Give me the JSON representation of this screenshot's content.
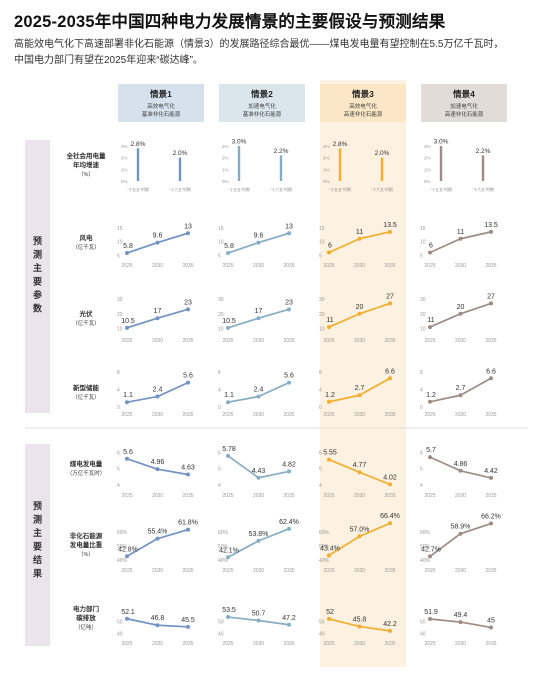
{
  "header": {
    "title": "2025-2035年中国四种电力发展情景的主要假设与预测结果",
    "subtitle_line1": "高能效电气化下高速部署非化石能源（情景3）的发展路径综合最优——煤电发电量有望控制在5.5万亿千瓦时，",
    "subtitle_line2": "中国电力部门有望在2025年迎来“碳达峰”。"
  },
  "colors": {
    "s1": "#7193c6",
    "s2": "#86adc3",
    "s3": "#f3ad2b",
    "s4": "#9c8c84",
    "s1_bg": "#d6e1ee",
    "s2_bg": "#dbe5ec",
    "s3_bg": "#fbe6c5",
    "s4_bg": "#e2dcd9",
    "s3_col": "#fdf1e1",
    "side_bg": "#ebe4ec"
  },
  "scenarios": [
    {
      "name": "情景1",
      "line1": "高效电气化",
      "line2": "基准非化石能源"
    },
    {
      "name": "情景2",
      "line1": "加速电气化",
      "line2": "基准非化石能源"
    },
    {
      "name": "情景3",
      "line1": "高效电气化",
      "line2": "高速非化石能源"
    },
    {
      "name": "情景4",
      "line1": "加速电气化",
      "line2": "高速非化石能源"
    }
  ],
  "side_labels": {
    "assumptions": [
      "预",
      "测",
      "主",
      "要",
      "参",
      "数"
    ],
    "results": [
      "预",
      "测",
      "主",
      "要",
      "结",
      "果"
    ]
  },
  "row_labels": [
    {
      "line1": "全社会用电量",
      "line2": "年均增速",
      "line3": "（%）"
    },
    {
      "line1": "风电",
      "line2": "（亿千瓦）",
      "line3": ""
    },
    {
      "line1": "光伏",
      "line2": "（亿千瓦）",
      "line3": ""
    },
    {
      "line1": "新型储能",
      "line2": "（亿千瓦）",
      "line3": ""
    },
    {
      "line1": "煤电发电量",
      "line2": "（万亿千瓦时）",
      "line3": ""
    },
    {
      "line1": "非化石能源",
      "line2": "发电量比重",
      "line3": "（%）"
    },
    {
      "line1": "电力部门",
      "line2": "碳排放",
      "line3": "（亿吨）"
    }
  ],
  "chart_data": [
    {
      "metric": "全社会用电量年均增速",
      "type": "bar",
      "unit": "%",
      "categories": [
        "\"十五五\"时期",
        "\"十六五\"时期"
      ],
      "y_ticks": [
        "3%",
        "2%",
        "1%",
        "0%"
      ],
      "ylim": [
        0,
        3
      ],
      "series": [
        {
          "name": "情景1",
          "values": [
            2.8,
            2.0
          ],
          "labels": [
            "2.8%",
            "2.0%"
          ]
        },
        {
          "name": "情景2",
          "values": [
            3.0,
            2.2
          ],
          "labels": [
            "3.0%",
            "2.2%"
          ]
        },
        {
          "name": "情景3",
          "values": [
            2.8,
            2.0
          ],
          "labels": [
            "2.8%",
            "2.0%"
          ]
        },
        {
          "name": "情景4",
          "values": [
            3.0,
            2.2
          ],
          "labels": [
            "3.0%",
            "2.2%"
          ]
        }
      ]
    },
    {
      "metric": "风电",
      "type": "line",
      "unit": "亿千瓦",
      "x": [
        "2025",
        "2030",
        "2035"
      ],
      "y_ticks": [
        "15",
        "10",
        "5"
      ],
      "ylim": [
        4,
        16
      ],
      "series": [
        {
          "name": "情景1",
          "values": [
            5.8,
            9.6,
            13
          ],
          "labels": [
            "5.8",
            "9.6",
            "13"
          ]
        },
        {
          "name": "情景2",
          "values": [
            5.8,
            9.6,
            13
          ],
          "labels": [
            "5.8",
            "9.6",
            "13"
          ]
        },
        {
          "name": "情景3",
          "values": [
            6,
            11,
            13.5
          ],
          "labels": [
            "6",
            "11",
            "13.5"
          ]
        },
        {
          "name": "情景4",
          "values": [
            6,
            11,
            13.5
          ],
          "labels": [
            "6",
            "11",
            "13.5"
          ]
        }
      ]
    },
    {
      "metric": "光伏",
      "type": "line",
      "unit": "亿千瓦",
      "y_ticks": [
        "30",
        "20",
        "10"
      ],
      "ylim": [
        7,
        32
      ],
      "series": [
        {
          "name": "情景1",
          "values": [
            10.5,
            17,
            23
          ],
          "labels": [
            "10.5",
            "17",
            "23"
          ]
        },
        {
          "name": "情景2",
          "values": [
            10.5,
            17,
            23
          ],
          "labels": [
            "10.5",
            "17",
            "23"
          ]
        },
        {
          "name": "情景3",
          "values": [
            11,
            20,
            27
          ],
          "labels": [
            "11",
            "20",
            "27"
          ]
        },
        {
          "name": "情景4",
          "values": [
            11,
            20,
            27
          ],
          "labels": [
            "11",
            "20",
            "27"
          ]
        }
      ]
    },
    {
      "metric": "新型储能",
      "type": "line",
      "unit": "亿千瓦",
      "y_ticks": [
        "8",
        "4",
        "0"
      ],
      "ylim": [
        0,
        8.5
      ],
      "series": [
        {
          "name": "情景1",
          "values": [
            1.1,
            2.4,
            5.6
          ],
          "labels": [
            "1.1",
            "2.4",
            "5.6"
          ]
        },
        {
          "name": "情景2",
          "values": [
            1.1,
            2.4,
            5.6
          ],
          "labels": [
            "1.1",
            "2.4",
            "5.6"
          ]
        },
        {
          "name": "情景3",
          "values": [
            1.2,
            2.7,
            6.6
          ],
          "labels": [
            "1.2",
            "2.7",
            "6.6"
          ]
        },
        {
          "name": "情景4",
          "values": [
            1.2,
            2.7,
            6.6
          ],
          "labels": [
            "1.2",
            "2.7",
            "6.6"
          ]
        }
      ]
    },
    {
      "metric": "煤电发电量",
      "type": "line",
      "unit": "万亿千瓦时",
      "y_ticks": [
        "6",
        "5",
        "4"
      ],
      "ylim": [
        3.8,
        6.2
      ],
      "series": [
        {
          "name": "情景1",
          "values": [
            5.6,
            4.96,
            4.63
          ],
          "labels": [
            "5.6",
            "4.96",
            "4.63"
          ]
        },
        {
          "name": "情景2",
          "values": [
            5.78,
            4.43,
            4.82
          ],
          "labels": [
            "5.78",
            "4.43",
            "4.82"
          ]
        },
        {
          "name": "情景3",
          "values": [
            5.55,
            4.77,
            4.02
          ],
          "labels": [
            "5.55",
            "4.77",
            "4.02"
          ]
        },
        {
          "name": "情景4",
          "values": [
            5.7,
            4.86,
            4.42
          ],
          "labels": [
            "5.7",
            "4.86",
            "4.42"
          ]
        }
      ]
    },
    {
      "metric": "非化石能源发电量比重",
      "type": "line",
      "unit": "%",
      "y_ticks": [
        "60%",
        "50%",
        "40%"
      ],
      "ylim": [
        38,
        68
      ],
      "series": [
        {
          "name": "情景1",
          "values": [
            42.8,
            55.4,
            61.8
          ],
          "labels": [
            "42.8%",
            "55.4%",
            "61.8%"
          ]
        },
        {
          "name": "情景2",
          "values": [
            42.1,
            53.8,
            62.4
          ],
          "labels": [
            "42.1%",
            "53.8%",
            "62.4%"
          ]
        },
        {
          "name": "情景3",
          "values": [
            43.4,
            57.0,
            66.4
          ],
          "labels": [
            "43.4%",
            "57.0%",
            "66.4%"
          ]
        },
        {
          "name": "情景4",
          "values": [
            42.7,
            58.9,
            66.2
          ],
          "labels": [
            "42.7%",
            "58.9%",
            "66.2%"
          ]
        }
      ]
    },
    {
      "metric": "电力部门碳排放",
      "type": "line",
      "unit": "亿吨",
      "x": [
        "2025",
        "2030",
        "2035"
      ],
      "y_ticks": [
        "50",
        "40"
      ],
      "ylim": [
        38,
        56
      ],
      "series": [
        {
          "name": "情景1",
          "values": [
            52.1,
            46.8,
            45.5
          ],
          "labels": [
            "52.1",
            "46.8",
            "45.5"
          ]
        },
        {
          "name": "情景2",
          "values": [
            53.5,
            50.7,
            47.2
          ],
          "labels": [
            "53.5",
            "50.7",
            "47.2"
          ]
        },
        {
          "name": "情景3",
          "values": [
            52,
            45.8,
            42.2
          ],
          "labels": [
            "52",
            "45.8",
            "42.2"
          ]
        },
        {
          "name": "情景4",
          "values": [
            51.9,
            49.4,
            45
          ],
          "labels": [
            "51.9",
            "49.4",
            "45"
          ]
        }
      ]
    }
  ]
}
